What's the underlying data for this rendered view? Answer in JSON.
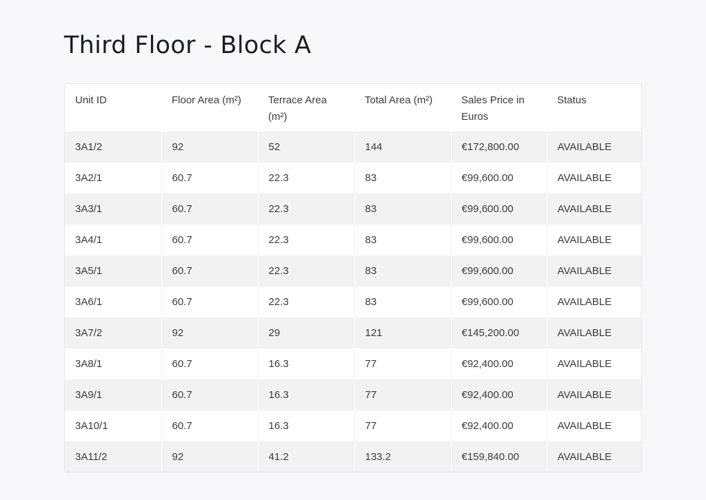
{
  "page": {
    "title": "Third Floor - Block A"
  },
  "table": {
    "headers": [
      "Unit ID",
      "Floor Area (m²)",
      "Terrace Area (m²)",
      "Total Area (m²)",
      "Sales Price in Euros",
      "Status"
    ],
    "rows": [
      [
        "3A1/2",
        "92",
        "52",
        "144",
        "€172,800.00",
        "AVAILABLE"
      ],
      [
        "3A2/1",
        "60.7",
        "22.3",
        "83",
        "€99,600.00",
        "AVAILABLE"
      ],
      [
        "3A3/1",
        "60.7",
        "22.3",
        "83",
        "€99,600.00",
        "AVAILABLE"
      ],
      [
        "3A4/1",
        "60.7",
        "22.3",
        "83",
        "€99,600.00",
        "AVAILABLE"
      ],
      [
        "3A5/1",
        "60.7",
        "22.3",
        "83",
        "€99,600.00",
        "AVAILABLE"
      ],
      [
        "3A6/1",
        "60.7",
        "22.3",
        "83",
        "€99,600.00",
        "AVAILABLE"
      ],
      [
        "3A7/2",
        "92",
        "29",
        "121",
        "€145,200.00",
        "AVAILABLE"
      ],
      [
        "3A8/1",
        "60.7",
        "16.3",
        "77",
        "€92,400.00",
        "AVAILABLE"
      ],
      [
        "3A9/1",
        "60.7",
        "16.3",
        "77",
        "€92,400.00",
        "AVAILABLE"
      ],
      [
        "3A10/1",
        "60.7",
        "16.3",
        "77",
        "€92,400.00",
        "AVAILABLE"
      ],
      [
        "3A11/2",
        "92",
        "41.2",
        "133.2",
        "€159,840.00",
        "AVAILABLE"
      ]
    ]
  },
  "colors": {
    "background": "#f8f8fa",
    "stripe": "#f2f2f2",
    "title_text": "#1c1c28",
    "cell_text": "#3a3a3a"
  }
}
